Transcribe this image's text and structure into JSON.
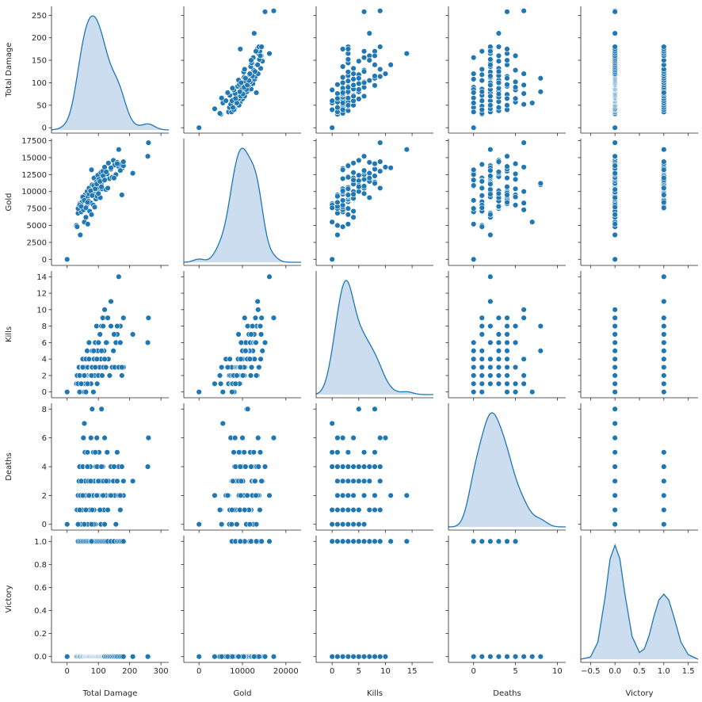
{
  "chart_data": {
    "type": "pairplot",
    "title": "",
    "variables": [
      "Total Damage",
      "Gold",
      "Kills",
      "Deaths",
      "Victory"
    ],
    "colors": {
      "point": "#1f77b4",
      "kde_fill": "#c5d9ec",
      "kde_line": "#1f77b4"
    },
    "axes": {
      "Total Damage": {
        "label": "Total Damage",
        "lim": [
          -50,
          325
        ],
        "ticks": [
          0,
          100,
          200,
          300
        ],
        "tick_labels": [
          "0",
          "100",
          "200",
          "300"
        ],
        "row_lim": [
          -12,
          270
        ],
        "row_ticks": [
          0,
          50,
          100,
          150,
          200,
          250
        ],
        "row_tick_labels": [
          "0",
          "50",
          "100",
          "150",
          "200",
          "250"
        ]
      },
      "Gold": {
        "label": "Gold",
        "lim": [
          -3500,
          23500
        ],
        "ticks": [
          0,
          10000,
          20000
        ],
        "tick_labels": [
          "0",
          "10000",
          "20000"
        ],
        "row_lim": [
          -900,
          17800
        ],
        "row_ticks": [
          0,
          2500,
          5000,
          7500,
          10000,
          12500,
          15000,
          17500
        ],
        "row_tick_labels": [
          "0",
          "2500",
          "5000",
          "7500",
          "10000",
          "12500",
          "15000",
          "17500"
        ]
      },
      "Kills": {
        "label": "Kills",
        "lim": [
          -3,
          19
        ],
        "ticks": [
          0,
          5,
          10,
          15
        ],
        "tick_labels": [
          "0",
          "5",
          "10",
          "15"
        ],
        "row_lim": [
          -0.7,
          14.7
        ],
        "row_ticks": [
          0,
          2,
          4,
          6,
          8,
          10,
          12,
          14
        ],
        "row_tick_labels": [
          "0",
          "2",
          "4",
          "6",
          "8",
          "10",
          "12",
          "14"
        ]
      },
      "Deaths": {
        "label": "Deaths",
        "lim": [
          -3,
          11
        ],
        "ticks": [
          0,
          5,
          10
        ],
        "tick_labels": [
          "0",
          "5",
          "10"
        ],
        "row_lim": [
          -0.4,
          8.4
        ],
        "row_ticks": [
          0,
          2,
          4,
          6,
          8
        ],
        "row_tick_labels": [
          "0",
          "2",
          "4",
          "6",
          "8"
        ]
      },
      "Victory": {
        "label": "Victory",
        "lim": [
          -0.7,
          1.7
        ],
        "ticks": [
          -0.5,
          0.0,
          0.5,
          1.0,
          1.5
        ],
        "tick_labels": [
          "−0.5",
          "0.0",
          "0.5",
          "1.0",
          "1.5"
        ],
        "row_lim": [
          -0.05,
          1.05
        ],
        "row_ticks": [
          0.0,
          0.2,
          0.4,
          0.6,
          0.8,
          1.0
        ],
        "row_tick_labels": [
          "0.0",
          "0.2",
          "0.4",
          "0.6",
          "0.8",
          "1.0"
        ]
      }
    },
    "rows": [
      [
        0,
        0,
        0,
        0,
        0
      ],
      [
        30,
        5000,
        1,
        1,
        0
      ],
      [
        32,
        4800,
        2,
        1,
        0
      ],
      [
        35,
        6800,
        1,
        2,
        0
      ],
      [
        38,
        7500,
        3,
        3,
        0
      ],
      [
        40,
        8200,
        0,
        4,
        0
      ],
      [
        42,
        3600,
        1,
        2,
        0
      ],
      [
        45,
        7000,
        2,
        0,
        0
      ],
      [
        48,
        8500,
        3,
        1,
        0
      ],
      [
        50,
        9000,
        4,
        4,
        0
      ],
      [
        52,
        7300,
        2,
        6,
        0
      ],
      [
        55,
        5500,
        0,
        7,
        0
      ],
      [
        57,
        9500,
        1,
        5,
        0
      ],
      [
        58,
        8800,
        3,
        3,
        0
      ],
      [
        60,
        6200,
        4,
        2,
        0
      ],
      [
        62,
        7800,
        2,
        1,
        0
      ],
      [
        64,
        10000,
        5,
        4,
        0
      ],
      [
        65,
        9200,
        1,
        5,
        0
      ],
      [
        66,
        5200,
        3,
        0,
        0
      ],
      [
        68,
        8600,
        2,
        3,
        0
      ],
      [
        70,
        10500,
        6,
        2,
        0
      ],
      [
        72,
        7100,
        4,
        1,
        0
      ],
      [
        74,
        9800,
        2,
        4,
        0
      ],
      [
        76,
        8300,
        1,
        6,
        0
      ],
      [
        78,
        6600,
        3,
        2,
        0
      ],
      [
        80,
        11000,
        5,
        8,
        0
      ],
      [
        82,
        10200,
        3,
        3,
        0
      ],
      [
        84,
        8000,
        0,
        5,
        0
      ],
      [
        85,
        9600,
        2,
        2,
        0
      ],
      [
        86,
        12000,
        4,
        1,
        0
      ],
      [
        88,
        7700,
        2,
        3,
        0
      ],
      [
        90,
        10800,
        6,
        0,
        0
      ],
      [
        92,
        8900,
        3,
        4,
        0
      ],
      [
        94,
        11400,
        8,
        2,
        0
      ],
      [
        95,
        10000,
        4,
        6,
        0
      ],
      [
        96,
        9300,
        1,
        4,
        0
      ],
      [
        98,
        12400,
        5,
        3,
        0
      ],
      [
        100,
        9900,
        2,
        2,
        0
      ],
      [
        102,
        11800,
        6,
        5,
        0
      ],
      [
        104,
        10600,
        3,
        1,
        0
      ],
      [
        106,
        9100,
        7,
        3,
        0
      ],
      [
        108,
        12800,
        4,
        0,
        0
      ],
      [
        110,
        11200,
        8,
        8,
        0
      ],
      [
        112,
        10400,
        2,
        2,
        0
      ],
      [
        114,
        13000,
        9,
        4,
        0
      ],
      [
        116,
        12200,
        3,
        3,
        0
      ],
      [
        118,
        11600,
        5,
        1,
        0
      ],
      [
        120,
        13600,
        10,
        6,
        0
      ],
      [
        124,
        10300,
        3,
        2,
        0
      ],
      [
        128,
        12600,
        6,
        5,
        0
      ],
      [
        132,
        14200,
        4,
        3,
        0
      ],
      [
        136,
        11900,
        2,
        2,
        0
      ],
      [
        140,
        13300,
        8,
        4,
        0
      ],
      [
        144,
        12100,
        3,
        2,
        0
      ],
      [
        148,
        14600,
        5,
        3,
        0
      ],
      [
        152,
        13900,
        3,
        2,
        0
      ],
      [
        156,
        12500,
        6,
        0,
        0
      ],
      [
        160,
        14300,
        7,
        3,
        0
      ],
      [
        165,
        13700,
        3,
        4,
        0
      ],
      [
        170,
        14000,
        8,
        1,
        0
      ],
      [
        175,
        13400,
        2,
        2,
        0
      ],
      [
        180,
        13800,
        3,
        2,
        0
      ],
      [
        210,
        12700,
        7,
        3,
        0
      ],
      [
        260,
        17200,
        9,
        6,
        0
      ],
      [
        258,
        15200,
        6,
        4,
        0
      ],
      [
        35,
        7500,
        1,
        0,
        1
      ],
      [
        40,
        8000,
        2,
        1,
        1
      ],
      [
        45,
        7800,
        1,
        3,
        1
      ],
      [
        50,
        9200,
        3,
        2,
        1
      ],
      [
        55,
        8700,
        2,
        0,
        1
      ],
      [
        60,
        7600,
        0,
        1,
        1
      ],
      [
        65,
        8400,
        1,
        4,
        1
      ],
      [
        70,
        9600,
        4,
        2,
        1
      ],
      [
        75,
        10100,
        2,
        3,
        1
      ],
      [
        80,
        9400,
        3,
        1,
        1
      ],
      [
        85,
        10900,
        5,
        0,
        1
      ],
      [
        90,
        10400,
        3,
        5,
        1
      ],
      [
        95,
        11100,
        4,
        2,
        1
      ],
      [
        100,
        9700,
        6,
        3,
        1
      ],
      [
        105,
        11500,
        7,
        1,
        1
      ],
      [
        110,
        10700,
        5,
        4,
        1
      ],
      [
        115,
        12300,
        8,
        2,
        1
      ],
      [
        120,
        11700,
        4,
        0,
        1
      ],
      [
        125,
        12900,
        6,
        3,
        1
      ],
      [
        130,
        10500,
        9,
        1,
        1
      ],
      [
        140,
        13500,
        11,
        2,
        1
      ],
      [
        150,
        12000,
        7,
        4,
        1
      ],
      [
        160,
        14100,
        8,
        5,
        1
      ],
      [
        165,
        16200,
        14,
        2,
        1
      ],
      [
        170,
        13100,
        6,
        2,
        1
      ],
      [
        175,
        9500,
        3,
        4,
        1
      ],
      [
        180,
        14400,
        9,
        3,
        1
      ],
      [
        78,
        13200,
        2,
        0,
        1
      ]
    ],
    "victory_kde": {
      "x": [
        -0.7,
        -0.5,
        -0.35,
        -0.2,
        -0.1,
        0.0,
        0.1,
        0.2,
        0.35,
        0.5,
        0.6,
        0.7,
        0.8,
        0.9,
        1.0,
        1.1,
        1.2,
        1.35,
        1.5,
        1.7
      ],
      "y": [
        0.0,
        0.02,
        0.15,
        0.55,
        0.88,
        1.0,
        0.88,
        0.58,
        0.2,
        0.06,
        0.09,
        0.21,
        0.38,
        0.52,
        0.57,
        0.52,
        0.38,
        0.15,
        0.04,
        0.0
      ]
    },
    "grid": false,
    "legend": "none"
  }
}
